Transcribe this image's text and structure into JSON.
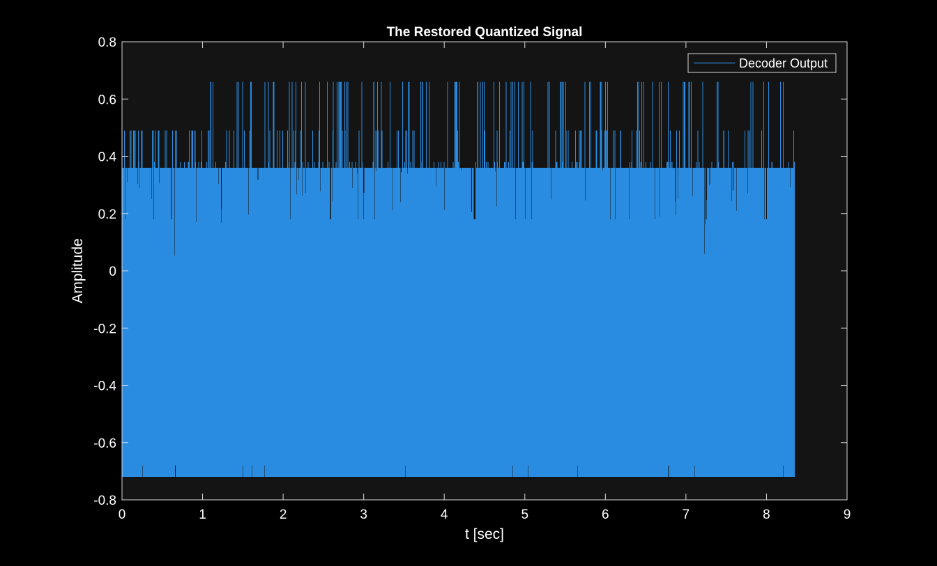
{
  "chart_data": {
    "type": "line",
    "title": "The Restored Quantized Signal",
    "xlabel": "t [sec]",
    "ylabel": "Amplitude",
    "xlim": [
      0,
      9
    ],
    "ylim": [
      -0.8,
      0.8
    ],
    "x_ticks": [
      0,
      1,
      2,
      3,
      4,
      5,
      6,
      7,
      8,
      9
    ],
    "x_tick_labels": [
      "0",
      "1",
      "2",
      "3",
      "4",
      "5",
      "6",
      "7",
      "8",
      "9"
    ],
    "y_ticks": [
      0.8,
      0.6,
      0.4,
      0.2,
      0,
      -0.2,
      -0.4,
      -0.6,
      -0.8
    ],
    "y_tick_labels": [
      "0.8",
      "0.6",
      "0.4",
      "0.2",
      "0",
      "-0.2",
      "-0.4",
      "-0.6",
      "-0.8"
    ],
    "grid": false,
    "legend_position": "top-right",
    "series": [
      {
        "name": "Decoder Output",
        "color": "#2a8ce0",
        "t_start": 0,
        "t_end": 8.35,
        "dense_envelope": {
          "min": -0.72,
          "max": 0.36
        },
        "quantization_levels": [
          -0.72,
          -0.68,
          0.18,
          0.36,
          0.38,
          0.49,
          0.66
        ],
        "upper_envelope_by_second": [
          {
            "t": 0,
            "max": 0.49
          },
          {
            "t": 1,
            "max": 0.66
          },
          {
            "t": 2,
            "max": 0.66
          },
          {
            "t": 3,
            "max": 0.66
          },
          {
            "t": 4,
            "max": 0.66
          },
          {
            "t": 5,
            "max": 0.66
          },
          {
            "t": 6,
            "max": 0.66
          },
          {
            "t": 7,
            "max": 0.66
          },
          {
            "t": 8,
            "max": 0.66
          }
        ]
      }
    ]
  },
  "colors": {
    "figure_background": "#000000",
    "axes_background": "#141414",
    "axis_color": "#d9d9d9",
    "text_color": "#ffffff",
    "signal_color": "#2a8ce0"
  }
}
